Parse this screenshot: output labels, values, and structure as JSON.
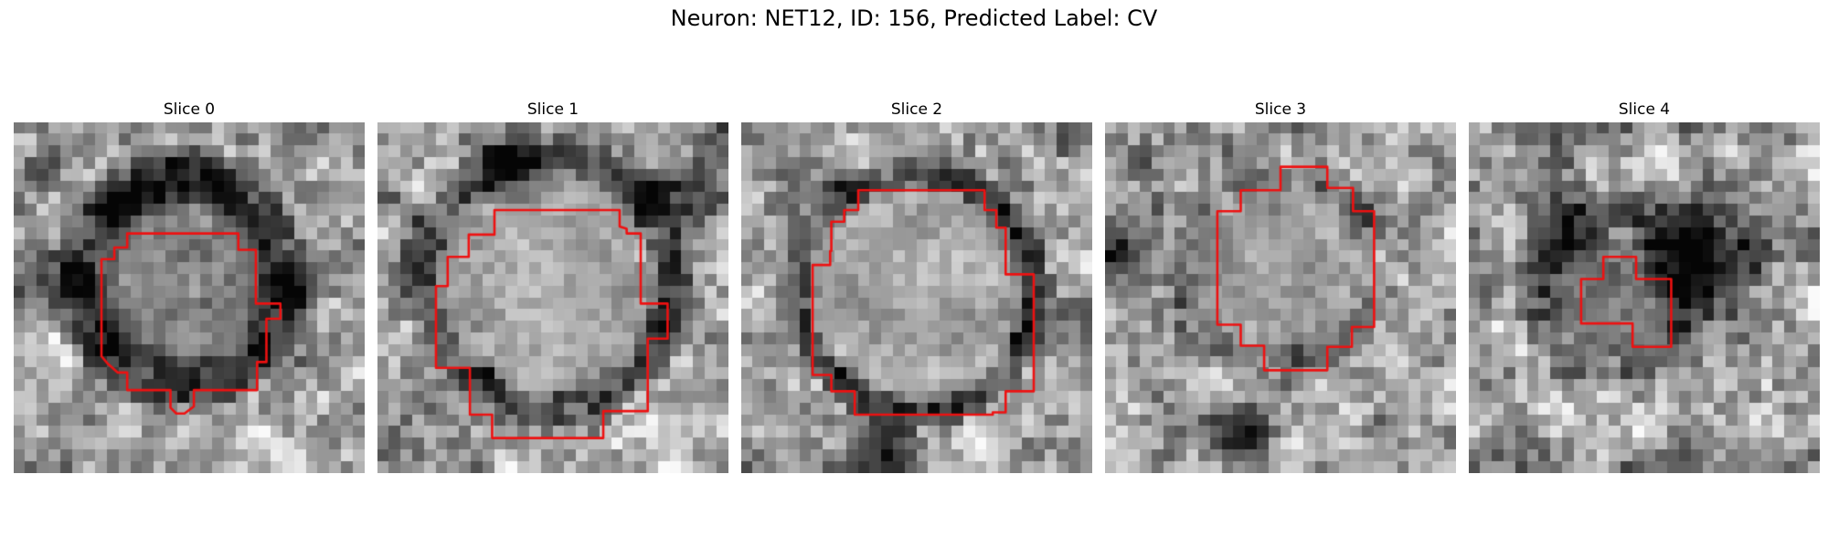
{
  "figure": {
    "title": "Neuron: NET12, ID: 156, Predicted Label: CV",
    "contour_color": "#ee1111"
  },
  "panels": [
    {
      "label": "Slice 0"
    },
    {
      "label": "Slice 1"
    },
    {
      "label": "Slice 2"
    },
    {
      "label": "Slice 3"
    },
    {
      "label": "Slice 4"
    }
  ]
}
